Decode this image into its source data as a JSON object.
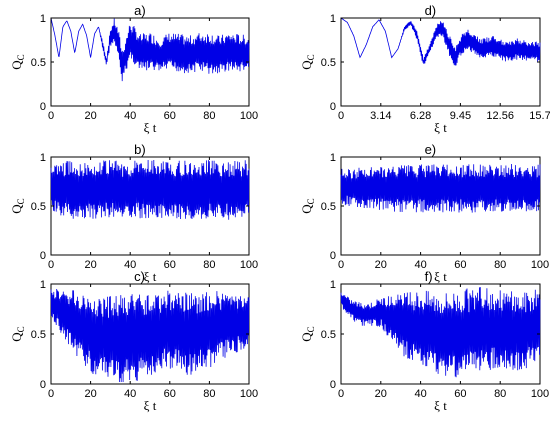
{
  "chart_data": [
    {
      "type": "line",
      "panel_label": "a)",
      "ylabel": "Q",
      "ylabel_sub": "C",
      "xlabel": "ξ t",
      "xlim": [
        0,
        100
      ],
      "ylim": [
        0,
        1
      ],
      "xticks": [
        "0",
        "20",
        "40",
        "60",
        "80",
        "100"
      ],
      "yticks": [
        "0",
        "0.5",
        "1"
      ],
      "series_color": "#0000e6",
      "series": [
        {
          "x": [
            0,
            2,
            4,
            6,
            8,
            10,
            12,
            14,
            16,
            18,
            20,
            22,
            24,
            26,
            28,
            30,
            32,
            34,
            36,
            38,
            40,
            45,
            50,
            55,
            60,
            65,
            70,
            75,
            80,
            85,
            90,
            95,
            100
          ],
          "y": [
            1,
            0.8,
            0.55,
            0.9,
            0.97,
            0.85,
            0.6,
            0.85,
            0.93,
            0.8,
            0.55,
            0.82,
            0.9,
            0.7,
            0.5,
            0.78,
            0.85,
            0.7,
            0.45,
            0.6,
            0.75,
            0.6,
            0.62,
            0.58,
            0.62,
            0.6,
            0.58,
            0.62,
            0.6,
            0.58,
            0.62,
            0.6,
            0.6
          ],
          "band": [
            0,
            0,
            0,
            0,
            0,
            0,
            0,
            0,
            0,
            0,
            0,
            0,
            0,
            0.05,
            0.05,
            0.1,
            0.15,
            0.18,
            0.2,
            0.2,
            0.22,
            0.22,
            0.22,
            0.2,
            0.22,
            0.22,
            0.22,
            0.22,
            0.25,
            0.22,
            0.22,
            0.22,
            0.2
          ]
        }
      ]
    },
    {
      "type": "line",
      "panel_label": "b)",
      "ylabel": "Q",
      "ylabel_sub": "C",
      "xlabel": "ξ t",
      "xlim": [
        0,
        100
      ],
      "ylim": [
        0,
        1
      ],
      "xticks": [
        "0",
        "20",
        "40",
        "60",
        "80",
        "100"
      ],
      "yticks": [
        "0",
        "0.5",
        "1"
      ],
      "series_color": "#0000e6",
      "series": [
        {
          "x": [
            0,
            10,
            20,
            30,
            40,
            50,
            60,
            70,
            80,
            90,
            100
          ],
          "y": [
            0.68,
            0.67,
            0.66,
            0.67,
            0.66,
            0.68,
            0.67,
            0.66,
            0.67,
            0.66,
            0.67
          ],
          "band": [
            0.25,
            0.3,
            0.3,
            0.3,
            0.3,
            0.3,
            0.3,
            0.3,
            0.3,
            0.3,
            0.3
          ]
        }
      ]
    },
    {
      "type": "line",
      "panel_label": "c)",
      "ylabel": "Q",
      "ylabel_sub": "C",
      "xlabel": "ξ t",
      "xlim": [
        0,
        100
      ],
      "ylim": [
        0,
        1
      ],
      "xticks": [
        "0",
        "20",
        "40",
        "60",
        "80",
        "100"
      ],
      "yticks": [
        "0",
        "0.5",
        "1"
      ],
      "series_color": "#0000e6",
      "series": [
        {
          "x": [
            0,
            10,
            20,
            30,
            40,
            50,
            60,
            70,
            80,
            90,
            100
          ],
          "y": [
            0.8,
            0.65,
            0.5,
            0.45,
            0.45,
            0.5,
            0.55,
            0.5,
            0.55,
            0.6,
            0.62
          ],
          "band": [
            0.15,
            0.3,
            0.4,
            0.45,
            0.45,
            0.42,
            0.4,
            0.42,
            0.4,
            0.32,
            0.25
          ]
        }
      ]
    },
    {
      "type": "line",
      "panel_label": "d)",
      "ylabel": "Q",
      "ylabel_sub": "C",
      "xlabel": "ξ t",
      "xlim": [
        0,
        15.7
      ],
      "ylim": [
        0,
        1
      ],
      "xticks": [
        "0",
        "3.14",
        "6.28",
        "9.45",
        "12.56",
        "15.7"
      ],
      "yticks": [
        "0",
        "0.5",
        "1"
      ],
      "series_color": "#0000e6",
      "series": [
        {
          "x": [
            0,
            0.5,
            1,
            1.5,
            2,
            2.5,
            3,
            3.5,
            4,
            4.5,
            5,
            5.5,
            6,
            6.5,
            7,
            7.5,
            8,
            8.5,
            9,
            9.5,
            10,
            11,
            12,
            13,
            14,
            15,
            15.7
          ],
          "y": [
            1,
            0.95,
            0.8,
            0.55,
            0.7,
            0.9,
            0.98,
            0.85,
            0.55,
            0.65,
            0.88,
            0.95,
            0.8,
            0.5,
            0.65,
            0.85,
            0.88,
            0.7,
            0.55,
            0.7,
            0.75,
            0.65,
            0.68,
            0.62,
            0.65,
            0.62,
            0.62
          ],
          "band": [
            0,
            0,
            0,
            0,
            0,
            0,
            0,
            0,
            0,
            0,
            0.02,
            0.03,
            0.05,
            0.05,
            0.05,
            0.08,
            0.1,
            0.12,
            0.12,
            0.12,
            0.12,
            0.12,
            0.12,
            0.12,
            0.12,
            0.12,
            0.12
          ]
        }
      ]
    },
    {
      "type": "line",
      "panel_label": "e)",
      "ylabel": "Q",
      "ylabel_sub": "C",
      "xlabel": "ξ t",
      "xlim": [
        0,
        100
      ],
      "ylim": [
        0,
        1
      ],
      "xticks": [
        "0",
        "20",
        "40",
        "60",
        "80",
        "100"
      ],
      "yticks": [
        "0",
        "0.5",
        "1"
      ],
      "series_color": "#0000e6",
      "series": [
        {
          "x": [
            0,
            10,
            20,
            30,
            40,
            50,
            60,
            70,
            80,
            90,
            100
          ],
          "y": [
            0.7,
            0.68,
            0.68,
            0.68,
            0.68,
            0.68,
            0.68,
            0.68,
            0.68,
            0.68,
            0.68
          ],
          "band": [
            0.18,
            0.22,
            0.22,
            0.25,
            0.25,
            0.25,
            0.25,
            0.25,
            0.25,
            0.25,
            0.25
          ]
        }
      ]
    },
    {
      "type": "line",
      "panel_label": "f)",
      "ylabel": "Q",
      "ylabel_sub": "C",
      "xlabel": "ξ t",
      "xlim": [
        0,
        100
      ],
      "ylim": [
        0,
        1
      ],
      "xticks": [
        "0",
        "20",
        "40",
        "60",
        "80",
        "100"
      ],
      "yticks": [
        "0",
        "0.5",
        "1"
      ],
      "series_color": "#0000e6",
      "series": [
        {
          "x": [
            0,
            5,
            10,
            15,
            20,
            30,
            40,
            50,
            60,
            70,
            80,
            90,
            100
          ],
          "y": [
            0.85,
            0.75,
            0.7,
            0.7,
            0.72,
            0.6,
            0.55,
            0.5,
            0.5,
            0.55,
            0.55,
            0.5,
            0.6
          ],
          "band": [
            0.08,
            0.1,
            0.12,
            0.12,
            0.15,
            0.3,
            0.4,
            0.42,
            0.45,
            0.42,
            0.4,
            0.42,
            0.35
          ]
        }
      ]
    }
  ]
}
